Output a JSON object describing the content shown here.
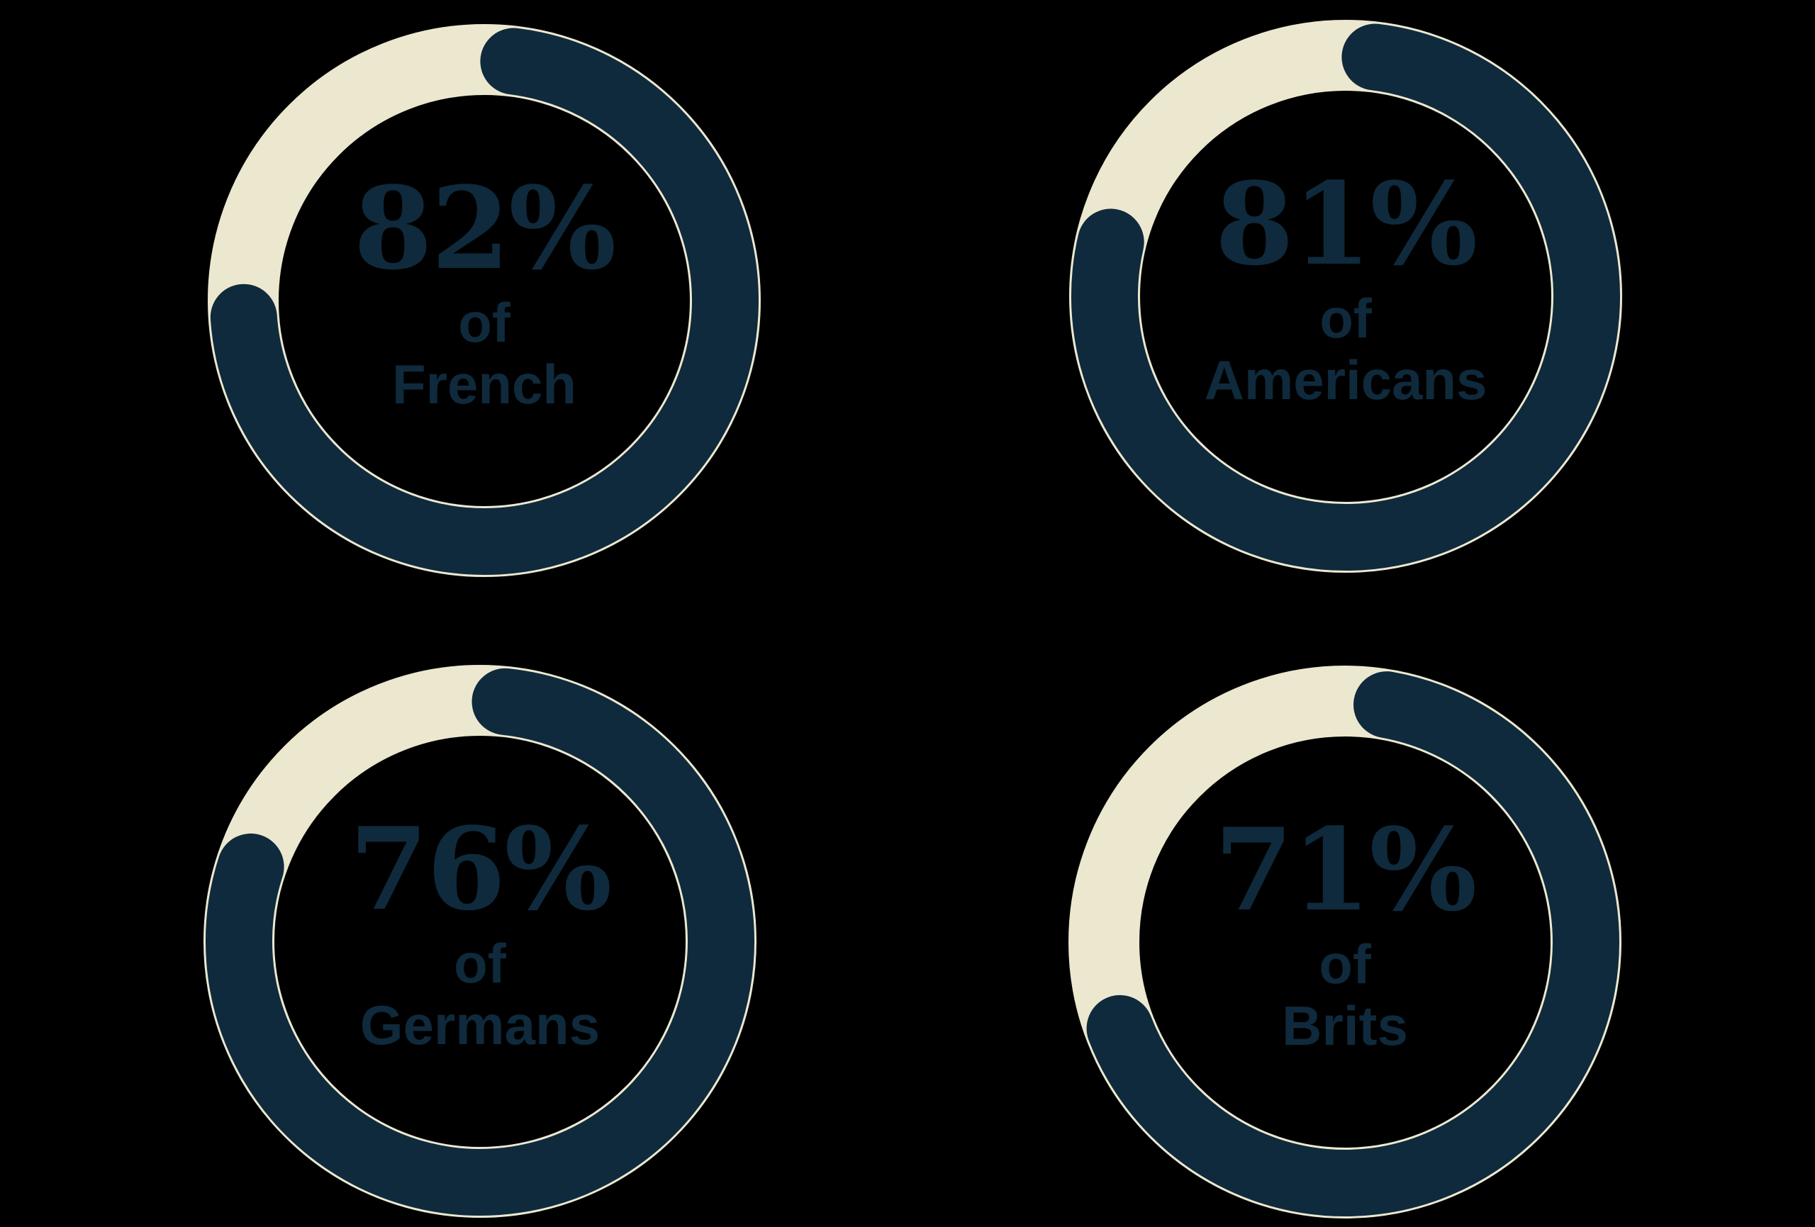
{
  "chart_data": {
    "type": "donut",
    "title": "",
    "description": "Four donut gauge charts showing share of respondents by nationality",
    "unit": "%",
    "categories": [
      "French",
      "Americans",
      "Germans",
      "Brits"
    ],
    "values": [
      82,
      81,
      76,
      71
    ],
    "items": [
      {
        "id": "french",
        "value": 82,
        "pct_text": "82%",
        "label_line1": "of",
        "label_line2": "French",
        "arc_start_deg": 83,
        "arc_end_deg": 184
      },
      {
        "id": "americans",
        "value": 81,
        "pct_text": "81%",
        "label_line1": "of",
        "label_line2": "Americans",
        "arc_start_deg": 83,
        "arc_end_deg": 167
      },
      {
        "id": "germans",
        "value": 76,
        "pct_text": "76%",
        "label_line1": "of",
        "label_line2": "Germans",
        "arc_start_deg": 84,
        "arc_end_deg": 162
      },
      {
        "id": "brits",
        "value": 71,
        "pct_text": "71%",
        "label_line1": "of",
        "label_line2": "Brits",
        "arc_start_deg": 80,
        "arc_end_deg": 201
      }
    ],
    "colors": {
      "fill": "#0f2a3c",
      "track": "#ece8d0",
      "text": "#0f2a3c",
      "background": "#000000"
    },
    "layout": {
      "grid": false,
      "legend": false,
      "arrangement": "2x2",
      "ring_mid_radius_px": 340,
      "track_stroke_px": 100,
      "fill_stroke_px": 94,
      "fill_linecap": "round"
    }
  }
}
